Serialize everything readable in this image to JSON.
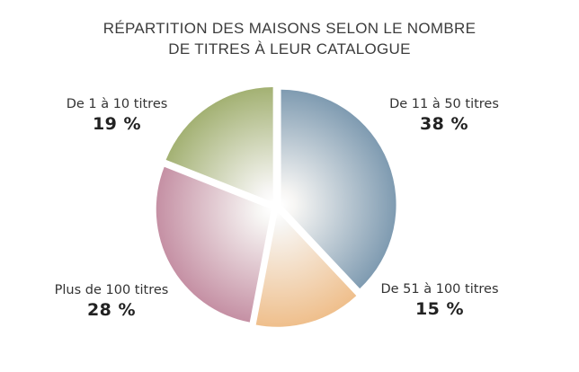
{
  "chart_data": {
    "type": "pie",
    "title_lines": [
      "RÉPARTITION DES MAISONS SELON LE NOMBRE",
      "DE TITRES À LEUR CATALOGUE"
    ],
    "slices": [
      {
        "label": "De 11 à 50 titres",
        "value": 38,
        "value_label": "38 %",
        "color": "#7f9bb1"
      },
      {
        "label": "De 51 à 100 titres",
        "value": 15,
        "value_label": "15 %",
        "color": "#efbf8c"
      },
      {
        "label": "Plus de 100 titres",
        "value": 28,
        "value_label": "28 %",
        "color": "#c590a4"
      },
      {
        "label": "De 1 à 10 titres",
        "value": 19,
        "value_label": "19 %",
        "color": "#a3b173"
      }
    ],
    "start_angle_deg": 0,
    "direction": "clockwise",
    "exploded": true
  }
}
